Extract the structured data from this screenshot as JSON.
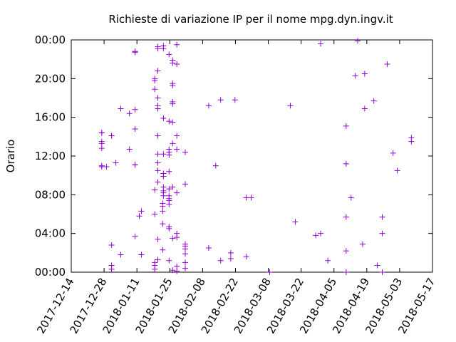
{
  "chart_data": {
    "type": "scatter",
    "title": "Richieste di variazione IP per il nome mpg.dyn.ingv.it",
    "ylabel": "Orario",
    "xlim": [
      0,
      154
    ],
    "xticks": [
      {
        "value": 0,
        "label": "2017-12-14"
      },
      {
        "value": 14,
        "label": "2017-12-28"
      },
      {
        "value": 28,
        "label": "2018-01-11"
      },
      {
        "value": 42,
        "label": "2018-01-25"
      },
      {
        "value": 56,
        "label": "2018-02-08"
      },
      {
        "value": 70,
        "label": "2018-02-22"
      },
      {
        "value": 84,
        "label": "2018-03-08"
      },
      {
        "value": 98,
        "label": "2018-03-22"
      },
      {
        "value": 112,
        "label": "2018-04-05"
      },
      {
        "value": 126,
        "label": "2018-04-19"
      },
      {
        "value": 140,
        "label": "2018-05-03"
      },
      {
        "value": 154,
        "label": "2018-05-17"
      }
    ],
    "ylim": [
      0,
      24
    ],
    "yticks": [
      {
        "value": 0,
        "label": "00:00"
      },
      {
        "value": 4,
        "label": "04:00"
      },
      {
        "value": 8,
        "label": "08:00"
      },
      {
        "value": 12,
        "label": "12:00"
      },
      {
        "value": 16,
        "label": "16:00"
      },
      {
        "value": 20,
        "label": "20:00"
      },
      {
        "value": 24,
        "label": "00:00"
      }
    ],
    "series": [
      {
        "color": "#9400d3",
        "x": [
          13,
          13,
          13,
          13,
          13,
          13,
          13,
          15,
          17.2,
          17.2,
          17.2,
          17.2,
          17.2,
          19,
          21.1,
          21.1,
          24.8,
          24.8,
          27.2,
          27.2,
          27.2,
          27.2,
          27.2,
          27.2,
          27.2,
          27.2,
          29,
          29.9,
          29.9,
          35.6,
          35.6,
          35.6,
          35.6,
          35.6,
          35.6,
          35.6,
          35.6,
          36.9,
          36.9,
          36.9,
          36.9,
          36.9,
          36.9,
          36.9,
          36.9,
          36.9,
          36.9,
          36.9,
          36.9,
          36.9,
          36.9,
          36.9,
          39.3,
          39.3,
          39.3,
          39.3,
          39.3,
          39.3,
          39.3,
          39.3,
          39.3,
          39.3,
          39,
          39,
          39,
          39,
          39,
          41.7,
          41.7,
          41.7,
          41.7,
          41.7,
          41.7,
          41.7,
          41.7,
          41.7,
          41.7,
          41.7,
          41.7,
          41.7,
          41.7,
          43.2,
          43.2,
          43.2,
          43.2,
          43.2,
          43.2,
          43.2,
          43.2,
          43.2,
          43.2,
          43.2,
          45,
          45,
          45,
          45,
          45,
          45,
          45,
          45,
          45,
          48.6,
          48.6,
          48.6,
          48.6,
          48.6,
          48.6,
          48.6,
          48.6,
          58.6,
          58.6,
          61.6,
          63.7,
          63.7,
          68,
          68,
          69.8,
          74.6,
          74.6,
          76.7,
          84.6,
          93.4,
          95.5,
          104.2,
          106.3,
          106.3,
          109.4,
          117.2,
          117.2,
          117.2,
          117.2,
          117.2,
          119.3,
          121.1,
          122.1,
          124.2,
          125.1,
          125.1,
          129,
          130.5,
          132.6,
          132.6,
          132.6,
          134.7,
          137.2,
          139,
          145,
          145
        ],
        "values": [
          14.4,
          14.4,
          13.5,
          12.8,
          13.3,
          11.0,
          10.9,
          10.9,
          14.1,
          14.1,
          2.8,
          0.7,
          0.3,
          11.3,
          16.9,
          1.8,
          16.4,
          12.7,
          16.8,
          14.8,
          11.1,
          11.1,
          3.7,
          22.8,
          22.8,
          22.7,
          5.8,
          6.3,
          1.8,
          19.8,
          20.0,
          18.9,
          8.5,
          6.0,
          1.0,
          0.7,
          0.3,
          9.3,
          10.5,
          11.3,
          12.2,
          14.1,
          14.1,
          18.0,
          17.2,
          16.9,
          20.8,
          20.8,
          23.3,
          23.1,
          3.4,
          1.3,
          23.4,
          23.1,
          15.9,
          8.2,
          7.9,
          8.4,
          8.8,
          9.9,
          10.2,
          12.2,
          7.1,
          6.8,
          6.3,
          5.0,
          2.3,
          22.5,
          15.6,
          12.7,
          12.4,
          12.1,
          10.4,
          8.6,
          7.6,
          7.9,
          7.4,
          7.0,
          4.7,
          4.5,
          1.2,
          21.9,
          21.6,
          19.5,
          19.3,
          17.6,
          17.4,
          15.5,
          13.3,
          8.8,
          3.5,
          0.2,
          23.5,
          21.5,
          14.1,
          12.7,
          8.2,
          4.0,
          3.6,
          0.6,
          0.1,
          12.4,
          9.1,
          2.9,
          2.7,
          2.4,
          1.9,
          1.0,
          0.4,
          17.2,
          2.5,
          11.0,
          17.8,
          1.2,
          1.4,
          2.0,
          17.8,
          7.7,
          1.6,
          7.7,
          0,
          17.2,
          5.2,
          3.8,
          23.6,
          4.0,
          1.2,
          15.1,
          11.2,
          5.7,
          2.2,
          0,
          7.7,
          20.3,
          23.9,
          2.9,
          20.5,
          16.9,
          17.7,
          0.7,
          5.7,
          4.0,
          0,
          21.5,
          12.3,
          10.5,
          13.9,
          13.5
        ]
      }
    ]
  }
}
